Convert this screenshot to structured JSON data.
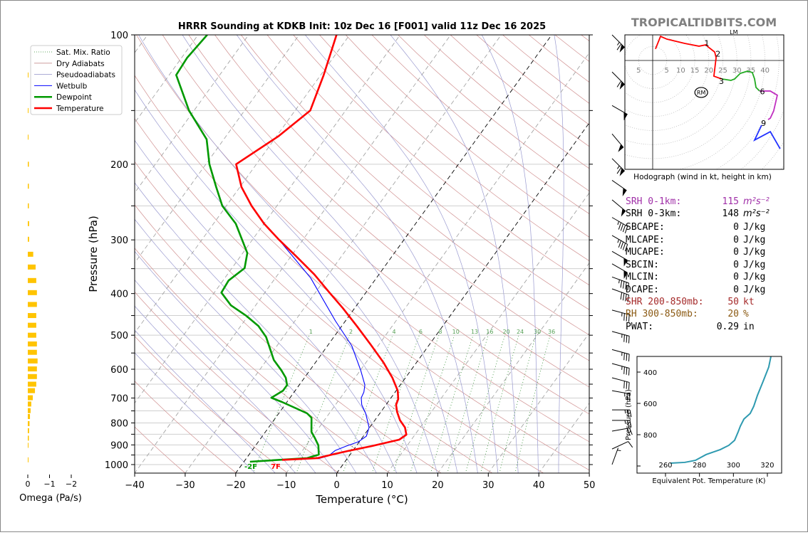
{
  "title": "HRRR Sounding at KDKB Init: 10z Dec 16 [F001] valid 11z Dec 16 2025",
  "watermark": "TROPICALTIDBITS.COM",
  "legend": [
    {
      "label": "Sat. Mix. Ratio",
      "color": "#2e8b2e",
      "style": "dotted"
    },
    {
      "label": "Dry Adiabats",
      "color": "#c89090",
      "style": "solid"
    },
    {
      "label": "Pseudoadiabats",
      "color": "#9090c8",
      "style": "solid"
    },
    {
      "label": "Wetbulb",
      "color": "#0000ff",
      "style": "solid"
    },
    {
      "label": "Dewpoint",
      "color": "#009900",
      "style": "solid"
    },
    {
      "label": "Temperature",
      "color": "#ff0000",
      "style": "solid"
    }
  ],
  "surface_labels": {
    "dewpoint": "-2F",
    "temperature": "7F"
  },
  "indices": [
    {
      "label": "SRH 0-1km:",
      "value": "115",
      "unit": "m²s⁻²",
      "color": "#a030a8"
    },
    {
      "label": "SRH 0-3km:",
      "value": "148",
      "unit": "m²s⁻²",
      "color": "#000000"
    },
    {
      "label": "SBCAPE:",
      "value": "0",
      "unit": "J/kg",
      "color": "#000000"
    },
    {
      "label": "MLCAPE:",
      "value": "0",
      "unit": "J/kg",
      "color": "#000000"
    },
    {
      "label": "MUCAPE:",
      "value": "0",
      "unit": "J/kg",
      "color": "#000000"
    },
    {
      "label": "SBCIN:",
      "value": "0",
      "unit": "J/kg",
      "color": "#000000"
    },
    {
      "label": "MLCIN:",
      "value": "0",
      "unit": "J/kg",
      "color": "#000000"
    },
    {
      "label": "DCAPE:",
      "value": "0",
      "unit": "J/kg",
      "color": "#000000"
    },
    {
      "label": "SHR 200-850mb:",
      "value": "50",
      "unit": "kt",
      "color": "#a52a2a"
    },
    {
      "label": "RH 300-850mb:",
      "value": "20",
      "unit": "%",
      "color": "#8b5a13"
    },
    {
      "label": "PWAT:",
      "value": "0.29",
      "unit": "in",
      "color": "#000000"
    }
  ],
  "chart_data": [
    {
      "type": "line",
      "name": "skew-t",
      "title": "HRRR Sounding at KDKB Init: 10z Dec 16 [F001] valid 11z Dec 16 2025",
      "xlabel": "Temperature (°C)",
      "ylabel": "Pressure (hPa)",
      "xlim": [
        -40,
        50
      ],
      "ylim": [
        1050,
        100
      ],
      "xticks": [
        "−40",
        "−30",
        "−20",
        "−10",
        "0",
        "10",
        "20",
        "30",
        "40",
        "50"
      ],
      "xtick_values": [
        -40,
        -30,
        -20,
        -10,
        0,
        10,
        20,
        30,
        40,
        50
      ],
      "yticks": [
        "100",
        "200",
        "300",
        "400",
        "500",
        "600",
        "700",
        "800",
        "900",
        "1000"
      ],
      "ytick_values": [
        100,
        200,
        300,
        400,
        500,
        600,
        700,
        800,
        900,
        1000
      ],
      "grid_pressures": [
        100,
        150,
        200,
        250,
        300,
        350,
        400,
        450,
        500,
        550,
        600,
        650,
        700,
        750,
        800,
        850,
        900,
        950,
        1000
      ],
      "mixing_ratio_labels": [
        "1",
        "2",
        "4",
        "6",
        "8",
        "10",
        "13",
        "16",
        "20",
        "24",
        "30",
        "36"
      ],
      "mixing_ratio_values": [
        1,
        2,
        4,
        6,
        8,
        10,
        13,
        16,
        20,
        24,
        30,
        36
      ],
      "legend_position": "upper-left",
      "series": [
        {
          "name": "Temperature",
          "color": "#ff0000",
          "p": [
            100,
            124,
            150,
            172,
            200,
            226,
            250,
            275,
            299,
            328,
            361,
            398,
            432,
            477,
            527,
            578,
            628,
            673,
            704,
            726,
            754,
            789,
            820,
            852,
            875,
            906,
            930,
            948,
            966,
            975
          ],
          "T": [
            -62.6,
            -59.4,
            -57,
            -59.6,
            -64,
            -59.7,
            -55,
            -50,
            -44.9,
            -38.9,
            -32.8,
            -27.2,
            -22.4,
            -16.9,
            -11.5,
            -6.6,
            -2.6,
            0.3,
            1.6,
            2.0,
            3.2,
            5.0,
            7.0,
            8.3,
            7.6,
            3.0,
            -1.0,
            -3.6,
            -5.9,
            -12.7
          ]
        },
        {
          "name": "Dewpoint",
          "color": "#009900",
          "p": [
            100,
            113,
            124,
            150,
            175,
            200,
            226,
            250,
            275,
            322,
            349,
            373,
            398,
            426,
            451,
            476,
            505,
            571,
            604,
            628,
            653,
            673,
            699,
            715,
            737,
            760,
            778,
            839,
            868,
            902,
            948,
            966,
            985
          ],
          "T": [
            -88.2,
            -88.9,
            -88.6,
            -81,
            -73.4,
            -69.3,
            -64.7,
            -60.8,
            -55.6,
            -49.1,
            -47.5,
            -48.9,
            -48.6,
            -44.9,
            -40.3,
            -36.5,
            -33.4,
            -28.6,
            -25.6,
            -23.7,
            -22.4,
            -22.4,
            -23.7,
            -21,
            -17.7,
            -14.4,
            -12.9,
            -10.9,
            -9.3,
            -7.6,
            -6.2,
            -8.0,
            -18.8
          ]
        },
        {
          "name": "Wetbulb",
          "color": "#0000ff",
          "p": [
            100,
            124,
            150,
            172,
            200,
            226,
            250,
            275,
            299,
            368,
            463,
            529,
            604,
            653,
            678,
            699,
            726,
            760,
            820,
            859,
            885,
            906,
            927,
            955,
            970
          ],
          "T": [
            -62.6,
            -59.4,
            -57,
            -59.6,
            -64,
            -59.7,
            -55,
            -50,
            -44.9,
            -33,
            -22,
            -15.2,
            -9.9,
            -7,
            -6.2,
            -5.9,
            -4.8,
            -2.8,
            -0.1,
            0.6,
            -0.2,
            -2,
            -3.5,
            -4.1,
            -5.8
          ]
        }
      ],
      "wind_barbs": [
        {
          "p": 100,
          "speed": 65,
          "dir": 315
        },
        {
          "p": 122,
          "speed": 60,
          "dir": 315
        },
        {
          "p": 146,
          "speed": 50,
          "dir": 300
        },
        {
          "p": 170,
          "speed": 50,
          "dir": 320
        },
        {
          "p": 194,
          "speed": 65,
          "dir": 315
        },
        {
          "p": 218,
          "speed": 50,
          "dir": 305
        },
        {
          "p": 242,
          "speed": 50,
          "dir": 310
        },
        {
          "p": 266,
          "speed": 45,
          "dir": 300
        },
        {
          "p": 293,
          "speed": 45,
          "dir": 300
        },
        {
          "p": 319,
          "speed": 50,
          "dir": 300
        },
        {
          "p": 341,
          "speed": 50,
          "dir": 300
        },
        {
          "p": 366,
          "speed": 45,
          "dir": 290
        },
        {
          "p": 390,
          "speed": 40,
          "dir": 290
        },
        {
          "p": 437,
          "speed": 35,
          "dir": 285
        },
        {
          "p": 490,
          "speed": 35,
          "dir": 285
        },
        {
          "p": 540,
          "speed": 35,
          "dir": 285
        },
        {
          "p": 582,
          "speed": 35,
          "dir": 285
        },
        {
          "p": 628,
          "speed": 30,
          "dir": 285
        },
        {
          "p": 673,
          "speed": 25,
          "dir": 280
        },
        {
          "p": 746,
          "speed": 25,
          "dir": 270
        },
        {
          "p": 789,
          "speed": 25,
          "dir": 270
        },
        {
          "p": 836,
          "speed": 20,
          "dir": 260
        },
        {
          "p": 920,
          "speed": 10,
          "dir": 245
        },
        {
          "p": 1000,
          "speed": 5,
          "dir": 200
        }
      ]
    },
    {
      "type": "line",
      "name": "hodograph",
      "title": "Hodograph (wind in kt, height in km)",
      "tick_labels": [
        "5",
        "5",
        "10",
        "15",
        "20",
        "25",
        "30",
        "35",
        "40"
      ],
      "tick_values": [
        -5,
        5,
        10,
        15,
        20,
        25,
        30,
        35,
        40
      ],
      "segments": [
        {
          "name": "0-3km",
          "color": "#ff0000",
          "u": [
            1,
            2.8,
            5.1,
            11.4,
            16.5,
            19,
            19.8,
            22.1,
            22.6,
            21.8,
            24.6
          ],
          "v": [
            4.1,
            8.6,
            7.6,
            6.1,
            5.1,
            5.6,
            4.8,
            3,
            1,
            -5.6,
            -6.6
          ]
        },
        {
          "name": "3-6km",
          "color": "#22aa22",
          "u": [
            24.6,
            27.9,
            29.2,
            31.2,
            33.8,
            35.5,
            36.3,
            36.8,
            38.1
          ],
          "v": [
            -6.6,
            -7.1,
            -6.6,
            -4.6,
            -3.8,
            -4.3,
            -6.6,
            -9.6,
            -10.9
          ]
        },
        {
          "name": "6-9km",
          "color": "#c030c0",
          "u": [
            38.1,
            41.9,
            44.4,
            43.1,
            41.9,
            41.1
          ],
          "v": [
            -10.9,
            -10.9,
            -12.4,
            -18,
            -20.6,
            -21.1
          ]
        },
        {
          "name": "9+km",
          "color": "#2030ff",
          "u": [
            38.8,
            36.3,
            41.9,
            45.4
          ],
          "v": [
            -23.1,
            -28.4,
            -25.4,
            -31.5
          ]
        }
      ],
      "height_labels": [
        {
          "text": "1",
          "u": 19.3,
          "v": 6.2
        },
        {
          "text": "2",
          "u": 23.3,
          "v": 2.4
        },
        {
          "text": "3",
          "u": 24.5,
          "v": -7.3
        },
        {
          "text": "6",
          "u": 39.1,
          "v": -11.0
        },
        {
          "text": "9",
          "u": 39.5,
          "v": -22.3
        }
      ],
      "storm_motion": [
        {
          "text": "RM",
          "u": 17.3,
          "v": -11.4
        },
        {
          "text": "LM",
          "u": 28.9,
          "v": 11.7
        }
      ]
    },
    {
      "type": "line",
      "name": "theta-e-profile",
      "xlabel": "Equivalent Pot. Temperature (K)",
      "ylabel": "Pressure (hPa)",
      "xlim": [
        243,
        328
      ],
      "ylim": [
        1045,
        300
      ],
      "xticks": [
        "260",
        "280",
        "300",
        "320"
      ],
      "xtick_values": [
        260,
        280,
        300,
        320
      ],
      "yticks": [
        "400",
        "600",
        "800",
        ""
      ],
      "ytick_values": [
        400,
        600,
        800,
        1000
      ],
      "color": "#2e9ab0",
      "theta_e": [
        262.9,
        271.3,
        277.6,
        283.9,
        292.3,
        297.3,
        300.7,
        302.8,
        304.1,
        306.2,
        309.9,
        312,
        314.1,
        317.5,
        320.8,
        322.1
      ],
      "p": [
        982,
        977,
        964,
        927,
        895,
        868,
        836,
        782,
        745,
        700,
        664,
        618,
        550,
        459,
        368,
        300
      ]
    },
    {
      "type": "bar",
      "name": "omega-profile",
      "xlabel": "Omega (Pa/s)",
      "xticks": [
        "0",
        "−1",
        "−2"
      ],
      "xtick_values": [
        0,
        -1,
        -2
      ],
      "color": "#ffc400",
      "p": [
        124,
        150,
        173,
        200,
        225,
        250,
        275,
        299,
        324,
        347,
        373,
        398,
        424,
        450,
        474,
        500,
        524,
        548,
        574,
        599,
        624,
        650,
        673,
        699,
        723,
        749,
        773,
        803,
        834,
        868,
        902,
        975
      ],
      "omega": [
        -0.02,
        -0.03,
        -0.03,
        -0.05,
        -0.05,
        -0.05,
        -0.06,
        -0.06,
        -0.25,
        -0.36,
        -0.39,
        -0.42,
        -0.42,
        -0.39,
        -0.39,
        -0.39,
        -0.42,
        -0.42,
        -0.45,
        -0.42,
        -0.42,
        -0.39,
        -0.33,
        -0.23,
        -0.16,
        -0.13,
        -0.1,
        -0.08,
        -0.06,
        -0.05,
        -0.03,
        -0.02
      ]
    }
  ]
}
